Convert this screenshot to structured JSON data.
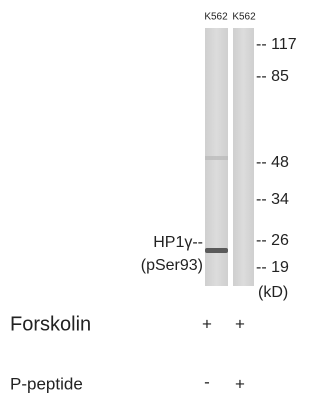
{
  "lanes": [
    "K562",
    "K562"
  ],
  "markers": [
    "-- 117",
    "-- 85",
    "-- 48",
    "-- 34",
    "-- 26",
    "-- 19"
  ],
  "unit": "(kD)",
  "band_label": {
    "name": "HP1γ--",
    "site": "(pSer93)"
  },
  "conditions": [
    {
      "label": "Forskolin",
      "lanes": [
        "+",
        "+"
      ]
    },
    {
      "label": "P-peptide",
      "lanes": [
        "-",
        "+"
      ]
    }
  ]
}
